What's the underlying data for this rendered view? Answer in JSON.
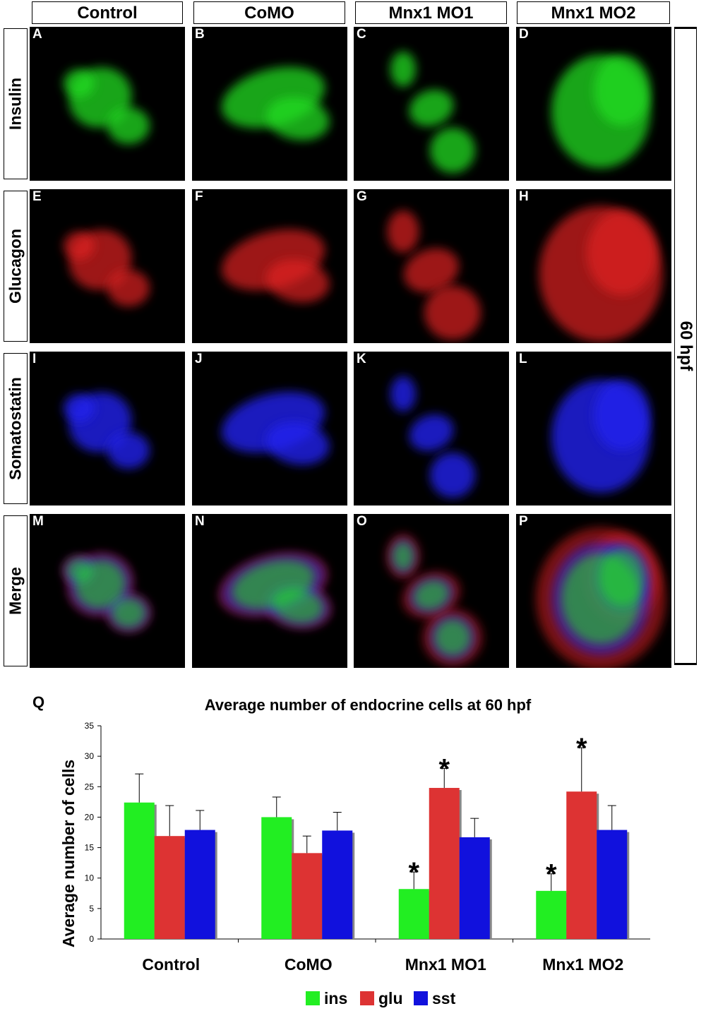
{
  "columns": [
    "Control",
    "CoMO",
    "Mnx1 MO1",
    "Mnx1 MO2"
  ],
  "rows": [
    {
      "label": "Insulin",
      "color": "#22dd22"
    },
    {
      "label": "Glucagon",
      "color": "#e02020"
    },
    {
      "label": "Somatostatin",
      "color": "#2222ee"
    },
    {
      "label": "Merge",
      "color": "merge"
    }
  ],
  "panel_letters": [
    "A",
    "B",
    "C",
    "D",
    "E",
    "F",
    "G",
    "H",
    "I",
    "J",
    "K",
    "L",
    "M",
    "N",
    "O",
    "P"
  ],
  "stage_label": "60 hpf",
  "chart_panel_letter": "Q",
  "chart_data": {
    "type": "bar",
    "title": "Average number of endocrine cells at 60 hpf",
    "xlabel": "",
    "ylabel": "Average number of cells",
    "categories": [
      "Control",
      "CoMO",
      "Mnx1 MO1",
      "Mnx1 MO2"
    ],
    "ylim": [
      0,
      35
    ],
    "yticks": [
      0,
      5,
      10,
      15,
      20,
      25,
      30,
      35
    ],
    "grid": false,
    "legend_position": "bottom",
    "series": [
      {
        "name": "ins",
        "color": "#22ee22",
        "values": [
          22.4,
          20.0,
          8.2,
          7.9
        ],
        "errors": [
          4.7,
          3.3,
          2.8,
          2.8
        ],
        "significant": [
          false,
          false,
          true,
          true
        ]
      },
      {
        "name": "glu",
        "color": "#dd3333",
        "values": [
          16.9,
          14.1,
          24.8,
          24.2
        ],
        "errors": [
          5.0,
          2.8,
          3.2,
          7.2
        ],
        "significant": [
          false,
          false,
          true,
          true
        ]
      },
      {
        "name": "sst",
        "color": "#1111dd",
        "values": [
          17.9,
          17.8,
          16.7,
          17.9
        ],
        "errors": [
          3.2,
          3.0,
          3.1,
          4.0
        ],
        "significant": [
          false,
          false,
          false,
          false
        ]
      }
    ],
    "significance_marker": "*"
  }
}
